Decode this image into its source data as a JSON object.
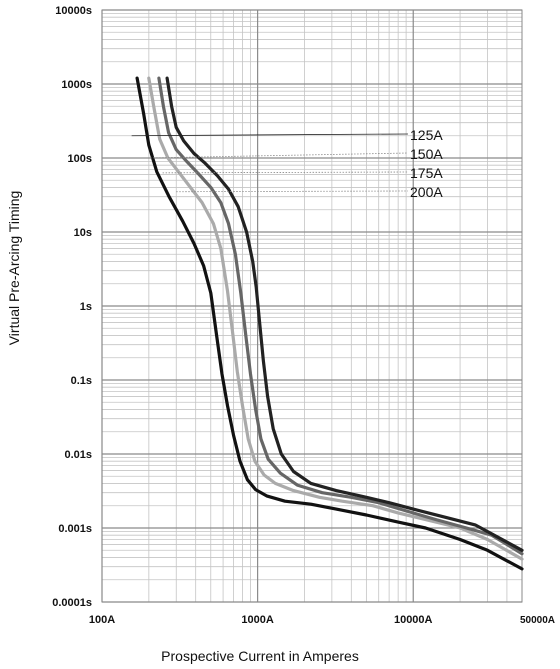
{
  "chart_data": {
    "type": "line",
    "title": "",
    "xlabel": "Prospective Current in Amperes",
    "ylabel": "Virtual Pre-Arcing Timing",
    "x_scale": "log",
    "y_scale": "log",
    "xlim": [
      100,
      50000
    ],
    "ylim": [
      0.0001,
      10000
    ],
    "x_ticks": [
      {
        "value": 100,
        "label": "100A"
      },
      {
        "value": 1000,
        "label": "1000A"
      },
      {
        "value": 10000,
        "label": "10000A"
      },
      {
        "value": 50000,
        "label": "50000A"
      }
    ],
    "y_ticks": [
      {
        "value": 10000,
        "label": "10000s"
      },
      {
        "value": 1000,
        "label": "1000s"
      },
      {
        "value": 100,
        "label": "100s"
      },
      {
        "value": 10,
        "label": "10s"
      },
      {
        "value": 1,
        "label": "1s"
      },
      {
        "value": 0.1,
        "label": "0.1s"
      },
      {
        "value": 0.01,
        "label": "0.01s"
      },
      {
        "value": 0.001,
        "label": "0.001s"
      },
      {
        "value": 0.0001,
        "label": "0.0001s"
      }
    ],
    "grid": true,
    "series": [
      {
        "name": "125A",
        "color": "#111111",
        "label_anchor": [
          155,
          200
        ],
        "points": [
          [
            168,
            1200
          ],
          [
            185,
            400
          ],
          [
            200,
            150
          ],
          [
            225,
            65
          ],
          [
            270,
            30
          ],
          [
            330,
            14
          ],
          [
            390,
            7
          ],
          [
            450,
            3.5
          ],
          [
            500,
            1.5
          ],
          [
            545,
            0.4
          ],
          [
            590,
            0.12
          ],
          [
            640,
            0.045
          ],
          [
            700,
            0.018
          ],
          [
            770,
            0.008
          ],
          [
            860,
            0.0045
          ],
          [
            970,
            0.0033
          ],
          [
            1150,
            0.0027
          ],
          [
            1500,
            0.0023
          ],
          [
            2200,
            0.0021
          ],
          [
            3200,
            0.0018
          ],
          [
            5000,
            0.0015
          ],
          [
            8000,
            0.0012
          ],
          [
            12000,
            0.001
          ],
          [
            20000,
            0.0007
          ],
          [
            30000,
            0.0005
          ],
          [
            50000,
            0.00028
          ]
        ]
      },
      {
        "name": "150A",
        "color": "#aaaaaa",
        "label_anchor": [
          195,
          100
        ],
        "points": [
          [
            200,
            1200
          ],
          [
            215,
            500
          ],
          [
            235,
            180
          ],
          [
            265,
            100
          ],
          [
            310,
            65
          ],
          [
            370,
            40
          ],
          [
            440,
            25
          ],
          [
            520,
            13
          ],
          [
            580,
            6
          ],
          [
            640,
            1.6
          ],
          [
            690,
            0.45
          ],
          [
            740,
            0.13
          ],
          [
            800,
            0.045
          ],
          [
            870,
            0.016
          ],
          [
            960,
            0.008
          ],
          [
            1100,
            0.0052
          ],
          [
            1300,
            0.004
          ],
          [
            1700,
            0.0032
          ],
          [
            2500,
            0.0026
          ],
          [
            3500,
            0.0023
          ],
          [
            5500,
            0.002
          ],
          [
            8000,
            0.0016
          ],
          [
            12000,
            0.0013
          ],
          [
            20000,
            0.001
          ],
          [
            30000,
            0.0007
          ],
          [
            50000,
            0.00038
          ]
        ]
      },
      {
        "name": "175A",
        "color": "#666666",
        "label_anchor": [
          245,
          63
        ],
        "points": [
          [
            232,
            1200
          ],
          [
            248,
            500
          ],
          [
            268,
            220
          ],
          [
            300,
            130
          ],
          [
            350,
            90
          ],
          [
            420,
            60
          ],
          [
            500,
            40
          ],
          [
            580,
            25
          ],
          [
            650,
            13
          ],
          [
            720,
            5
          ],
          [
            780,
            1.5
          ],
          [
            840,
            0.4
          ],
          [
            900,
            0.12
          ],
          [
            970,
            0.04
          ],
          [
            1050,
            0.016
          ],
          [
            1170,
            0.0085
          ],
          [
            1400,
            0.0055
          ],
          [
            1800,
            0.0038
          ],
          [
            2600,
            0.003
          ],
          [
            4000,
            0.0026
          ],
          [
            6000,
            0.0022
          ],
          [
            9000,
            0.0017
          ],
          [
            14000,
            0.0013
          ],
          [
            22000,
            0.001
          ],
          [
            32000,
            0.0008
          ],
          [
            50000,
            0.00045
          ]
        ]
      },
      {
        "name": "200A",
        "color": "#222222",
        "label_anchor": [
          300,
          35
        ],
        "points": [
          [
            262,
            1200
          ],
          [
            280,
            500
          ],
          [
            300,
            260
          ],
          [
            335,
            170
          ],
          [
            390,
            115
          ],
          [
            460,
            85
          ],
          [
            550,
            58
          ],
          [
            650,
            38
          ],
          [
            750,
            22
          ],
          [
            850,
            10
          ],
          [
            930,
            4
          ],
          [
            980,
            1.8
          ],
          [
            1030,
            0.6
          ],
          [
            1090,
            0.18
          ],
          [
            1160,
            0.06
          ],
          [
            1260,
            0.022
          ],
          [
            1420,
            0.01
          ],
          [
            1700,
            0.0058
          ],
          [
            2200,
            0.004
          ],
          [
            3200,
            0.0032
          ],
          [
            5000,
            0.0026
          ],
          [
            7000,
            0.0022
          ],
          [
            10000,
            0.0018
          ],
          [
            16000,
            0.0014
          ],
          [
            25000,
            0.0011
          ],
          [
            50000,
            0.0005
          ]
        ]
      }
    ]
  }
}
